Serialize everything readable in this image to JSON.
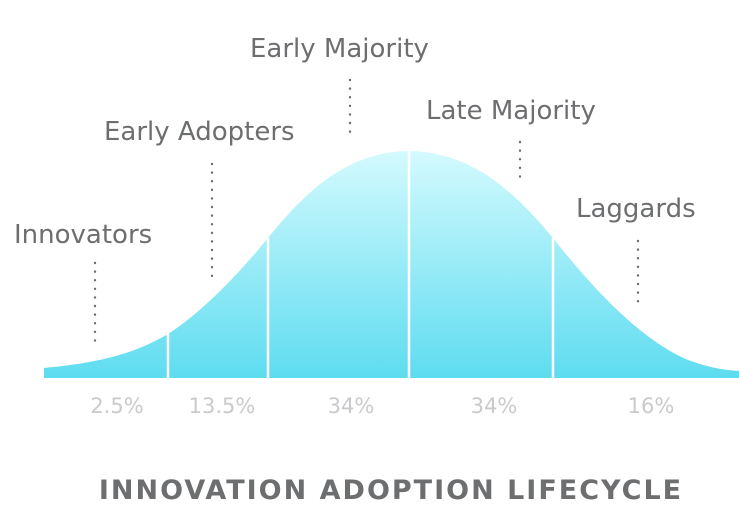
{
  "title": "INNOVATION ADOPTION LIFECYCLE",
  "segments": [
    {
      "name": "Innovators",
      "percent": "2.5%"
    },
    {
      "name": "Early Adopters",
      "percent": "13.5%"
    },
    {
      "name": "Early Majority",
      "percent": "34%"
    },
    {
      "name": "Late Majority",
      "percent": "34%"
    },
    {
      "name": "Laggards",
      "percent": "16%"
    }
  ],
  "colors": {
    "curve_top": "#d4fafe",
    "curve_bottom": "#5edcf0",
    "label_text": "#6d6e70",
    "percent_text": "#c9cacc"
  }
}
